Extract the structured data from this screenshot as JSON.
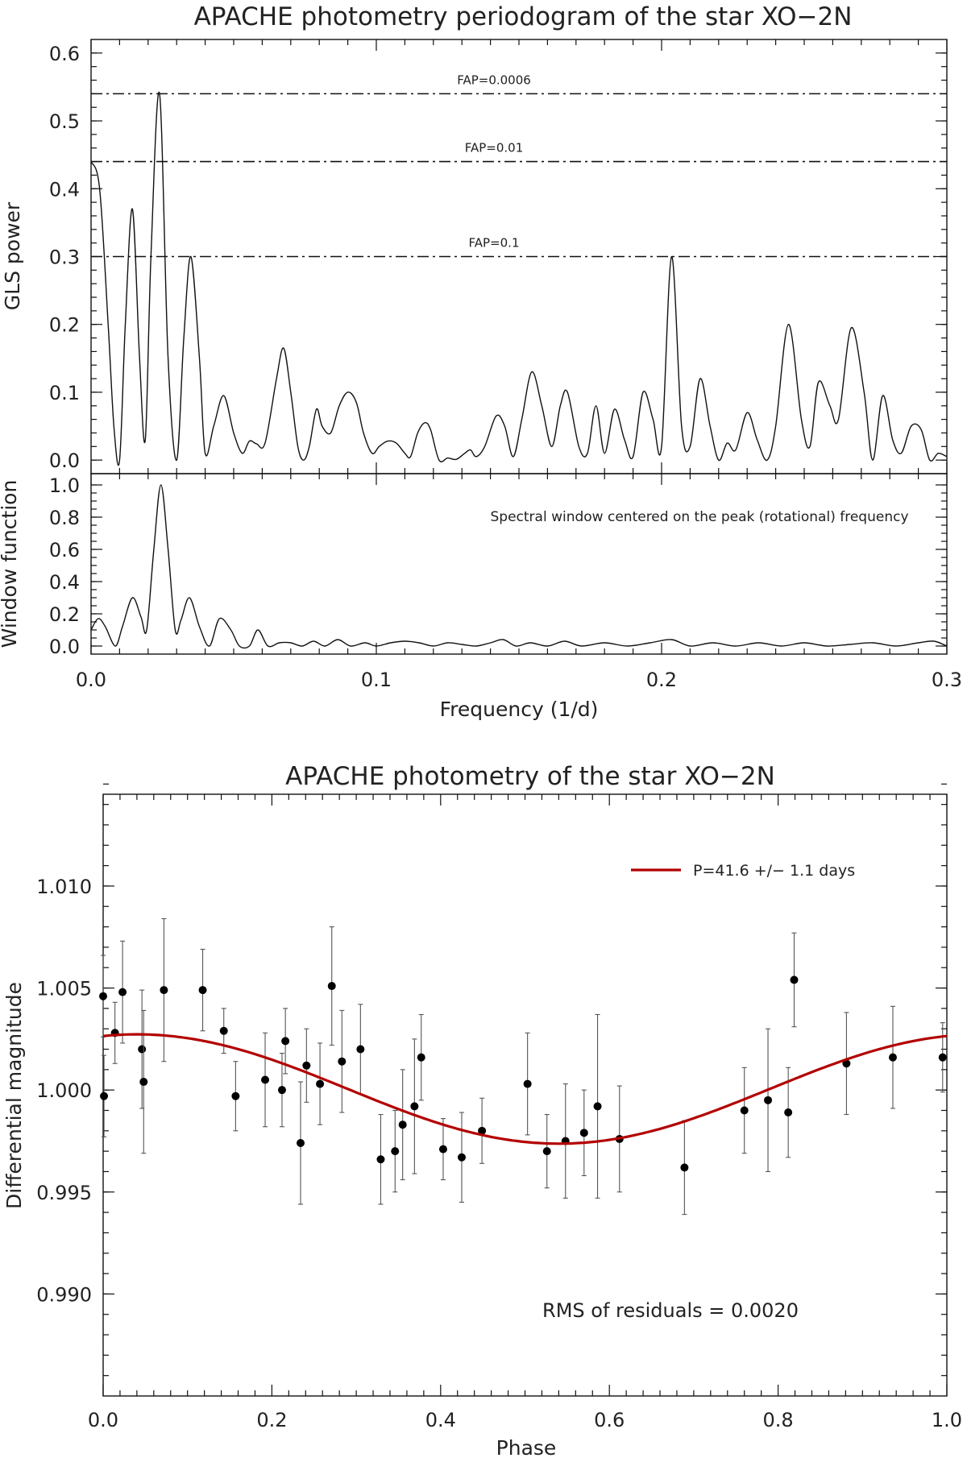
{
  "chart_data": [
    {
      "type": "line",
      "title": "APACHE photometry periodogram of the star XO−2N",
      "xlabel": "Frequency (1/d)",
      "ylabel": "GLS power",
      "xlim": [
        0.0,
        0.3
      ],
      "ylim": [
        -0.02,
        0.62
      ],
      "xticks": [
        "0.0",
        "0.1",
        "0.2",
        "0.3"
      ],
      "yticks": [
        "0.0",
        "0.1",
        "0.2",
        "0.3",
        "0.4",
        "0.5",
        "0.6"
      ],
      "fap_levels": [
        {
          "label": "FAP=0.0006",
          "value": 0.54
        },
        {
          "label": "FAP=0.01",
          "value": 0.44
        },
        {
          "label": "FAP=0.1",
          "value": 0.3
        }
      ],
      "series": [
        {
          "name": "GLS power",
          "x": [
            0.0,
            0.003,
            0.006,
            0.008,
            0.01,
            0.012,
            0.0145,
            0.017,
            0.019,
            0.021,
            0.024,
            0.027,
            0.03,
            0.0325,
            0.035,
            0.038,
            0.04,
            0.043,
            0.0465,
            0.05,
            0.053,
            0.0555,
            0.058,
            0.061,
            0.065,
            0.0675,
            0.07,
            0.0725,
            0.0745,
            0.0765,
            0.079,
            0.081,
            0.084,
            0.087,
            0.09,
            0.093,
            0.0955,
            0.0985,
            0.101,
            0.104,
            0.107,
            0.11,
            0.112,
            0.1145,
            0.117,
            0.119,
            0.122,
            0.125,
            0.128,
            0.131,
            0.133,
            0.135,
            0.138,
            0.142,
            0.145,
            0.148,
            0.151,
            0.1545,
            0.158,
            0.1615,
            0.1645,
            0.167,
            0.171,
            0.174,
            0.177,
            0.18,
            0.1835,
            0.187,
            0.19,
            0.1935,
            0.197,
            0.2,
            0.2035,
            0.207,
            0.21,
            0.2135,
            0.217,
            0.22,
            0.223,
            0.226,
            0.23,
            0.2335,
            0.237,
            0.24,
            0.2445,
            0.249,
            0.252,
            0.255,
            0.259,
            0.262,
            0.2665,
            0.271,
            0.274,
            0.2775,
            0.281,
            0.284,
            0.2875,
            0.291,
            0.294,
            0.297,
            0.3
          ],
          "values": [
            0.44,
            0.4,
            0.2,
            0.05,
            0.0,
            0.2,
            0.37,
            0.15,
            0.03,
            0.3,
            0.54,
            0.15,
            0.0,
            0.18,
            0.3,
            0.15,
            0.01,
            0.05,
            0.095,
            0.04,
            0.01,
            0.028,
            0.024,
            0.025,
            0.12,
            0.165,
            0.1,
            0.02,
            0.0,
            0.02,
            0.075,
            0.05,
            0.04,
            0.08,
            0.1,
            0.085,
            0.04,
            0.01,
            0.02,
            0.028,
            0.025,
            0.01,
            0.005,
            0.04,
            0.055,
            0.045,
            0.0,
            0.003,
            0.001,
            0.01,
            0.015,
            0.005,
            0.02,
            0.065,
            0.05,
            0.005,
            0.06,
            0.13,
            0.08,
            0.02,
            0.08,
            0.1,
            0.02,
            0.01,
            0.08,
            0.01,
            0.075,
            0.03,
            0.005,
            0.1,
            0.06,
            0.02,
            0.3,
            0.05,
            0.02,
            0.12,
            0.05,
            0.0,
            0.025,
            0.015,
            0.07,
            0.03,
            0.0,
            0.05,
            0.2,
            0.06,
            0.02,
            0.115,
            0.08,
            0.06,
            0.195,
            0.1,
            0.0,
            0.095,
            0.03,
            0.01,
            0.05,
            0.045,
            0.0,
            0.01,
            0.005
          ]
        }
      ]
    },
    {
      "type": "line",
      "title": "",
      "xlabel": "Frequency (1/d)",
      "ylabel": "Window function",
      "xlim": [
        0.0,
        0.3
      ],
      "ylim": [
        -0.05,
        1.07
      ],
      "xticks": [
        "0.0",
        "0.1",
        "0.2",
        "0.3"
      ],
      "yticks": [
        "0.0",
        "0.2",
        "0.4",
        "0.6",
        "0.8",
        "1.0"
      ],
      "annotation": "Spectral window centered on the peak (rotational) frequency",
      "series": [
        {
          "name": "Window function",
          "x": [
            0.0,
            0.0025,
            0.005,
            0.0085,
            0.011,
            0.0145,
            0.0175,
            0.0195,
            0.022,
            0.0245,
            0.027,
            0.0295,
            0.0315,
            0.0345,
            0.038,
            0.0415,
            0.045,
            0.049,
            0.052,
            0.0555,
            0.0585,
            0.062,
            0.066,
            0.07,
            0.074,
            0.078,
            0.082,
            0.0865,
            0.091,
            0.096,
            0.1,
            0.105,
            0.11,
            0.115,
            0.12,
            0.125,
            0.13,
            0.135,
            0.14,
            0.1445,
            0.149,
            0.154,
            0.16,
            0.166,
            0.172,
            0.18,
            0.188,
            0.196,
            0.2035,
            0.21,
            0.218,
            0.226,
            0.234,
            0.242,
            0.25,
            0.258,
            0.266,
            0.274,
            0.282,
            0.29,
            0.2955,
            0.3
          ],
          "values": [
            0.1,
            0.17,
            0.12,
            0.0,
            0.12,
            0.3,
            0.18,
            0.1,
            0.6,
            1.0,
            0.6,
            0.1,
            0.16,
            0.3,
            0.12,
            0.0,
            0.17,
            0.1,
            0.0,
            0.0,
            0.1,
            0.0,
            0.02,
            0.02,
            0.0,
            0.03,
            0.0,
            0.04,
            0.0,
            0.02,
            0.0,
            0.02,
            0.03,
            0.02,
            0.0,
            0.02,
            0.01,
            0.0,
            0.02,
            0.04,
            0.0,
            0.02,
            0.0,
            0.03,
            0.0,
            0.02,
            0.0,
            0.02,
            0.04,
            0.0,
            0.02,
            0.0,
            0.02,
            0.0,
            0.02,
            0.0,
            0.01,
            0.02,
            0.0,
            0.02,
            0.03,
            0.0
          ]
        }
      ]
    },
    {
      "type": "scatter",
      "title": "APACHE photometry of the star XO−2N",
      "xlabel": "Phase",
      "ylabel": "Differential magnitude",
      "xlim": [
        0.0,
        1.0
      ],
      "ylim": [
        0.985,
        1.0145
      ],
      "xticks": [
        "0.0",
        "0.2",
        "0.4",
        "0.6",
        "0.8",
        "1.0"
      ],
      "yticks": [
        "0.990",
        "0.995",
        "1.000",
        "1.005",
        "1.010"
      ],
      "legend": "P=41.6 +/− 1.1 days",
      "annotation": "RMS of residuals = 0.0020",
      "model_curve": {
        "mean": 1.00005,
        "amplitude": 0.00268,
        "peak_phase": 0.04
      },
      "points": {
        "x": [
          0.0,
          0.001,
          0.014,
          0.023,
          0.046,
          0.048,
          0.072,
          0.118,
          0.143,
          0.157,
          0.192,
          0.212,
          0.216,
          0.234,
          0.241,
          0.257,
          0.271,
          0.283,
          0.305,
          0.329,
          0.346,
          0.355,
          0.369,
          0.377,
          0.403,
          0.425,
          0.449,
          0.503,
          0.526,
          0.548,
          0.57,
          0.586,
          0.612,
          0.689,
          0.76,
          0.788,
          0.812,
          0.819,
          0.881,
          0.936,
          0.995
        ],
        "y": [
          1.0046,
          0.9997,
          1.0028,
          1.0048,
          1.002,
          1.0004,
          1.0049,
          1.0049,
          1.0029,
          0.9997,
          1.0005,
          1.0,
          1.0024,
          0.9974,
          1.0012,
          1.0003,
          1.0051,
          1.0014,
          1.002,
          0.9966,
          0.997,
          0.9983,
          0.9992,
          1.0016,
          0.9971,
          0.9967,
          0.998,
          1.0003,
          0.997,
          0.9975,
          0.9979,
          0.9992,
          0.9976,
          0.9962,
          0.999,
          0.9995,
          0.9989,
          1.0054,
          1.0013,
          1.0016,
          1.0016
        ],
        "err": [
          0.002,
          0.002,
          0.0015,
          0.0025,
          0.0029,
          0.0035,
          0.0035,
          0.002,
          0.0011,
          0.0017,
          0.0023,
          0.0018,
          0.0016,
          0.003,
          0.0018,
          0.002,
          0.0029,
          0.0025,
          0.0022,
          0.0022,
          0.002,
          0.0027,
          0.0033,
          0.0021,
          0.0015,
          0.0022,
          0.0016,
          0.0025,
          0.0018,
          0.0028,
          0.0021,
          0.0045,
          0.0026,
          0.0023,
          0.0021,
          0.0035,
          0.0022,
          0.0023,
          0.0025,
          0.0025,
          0.0017
        ]
      }
    }
  ]
}
